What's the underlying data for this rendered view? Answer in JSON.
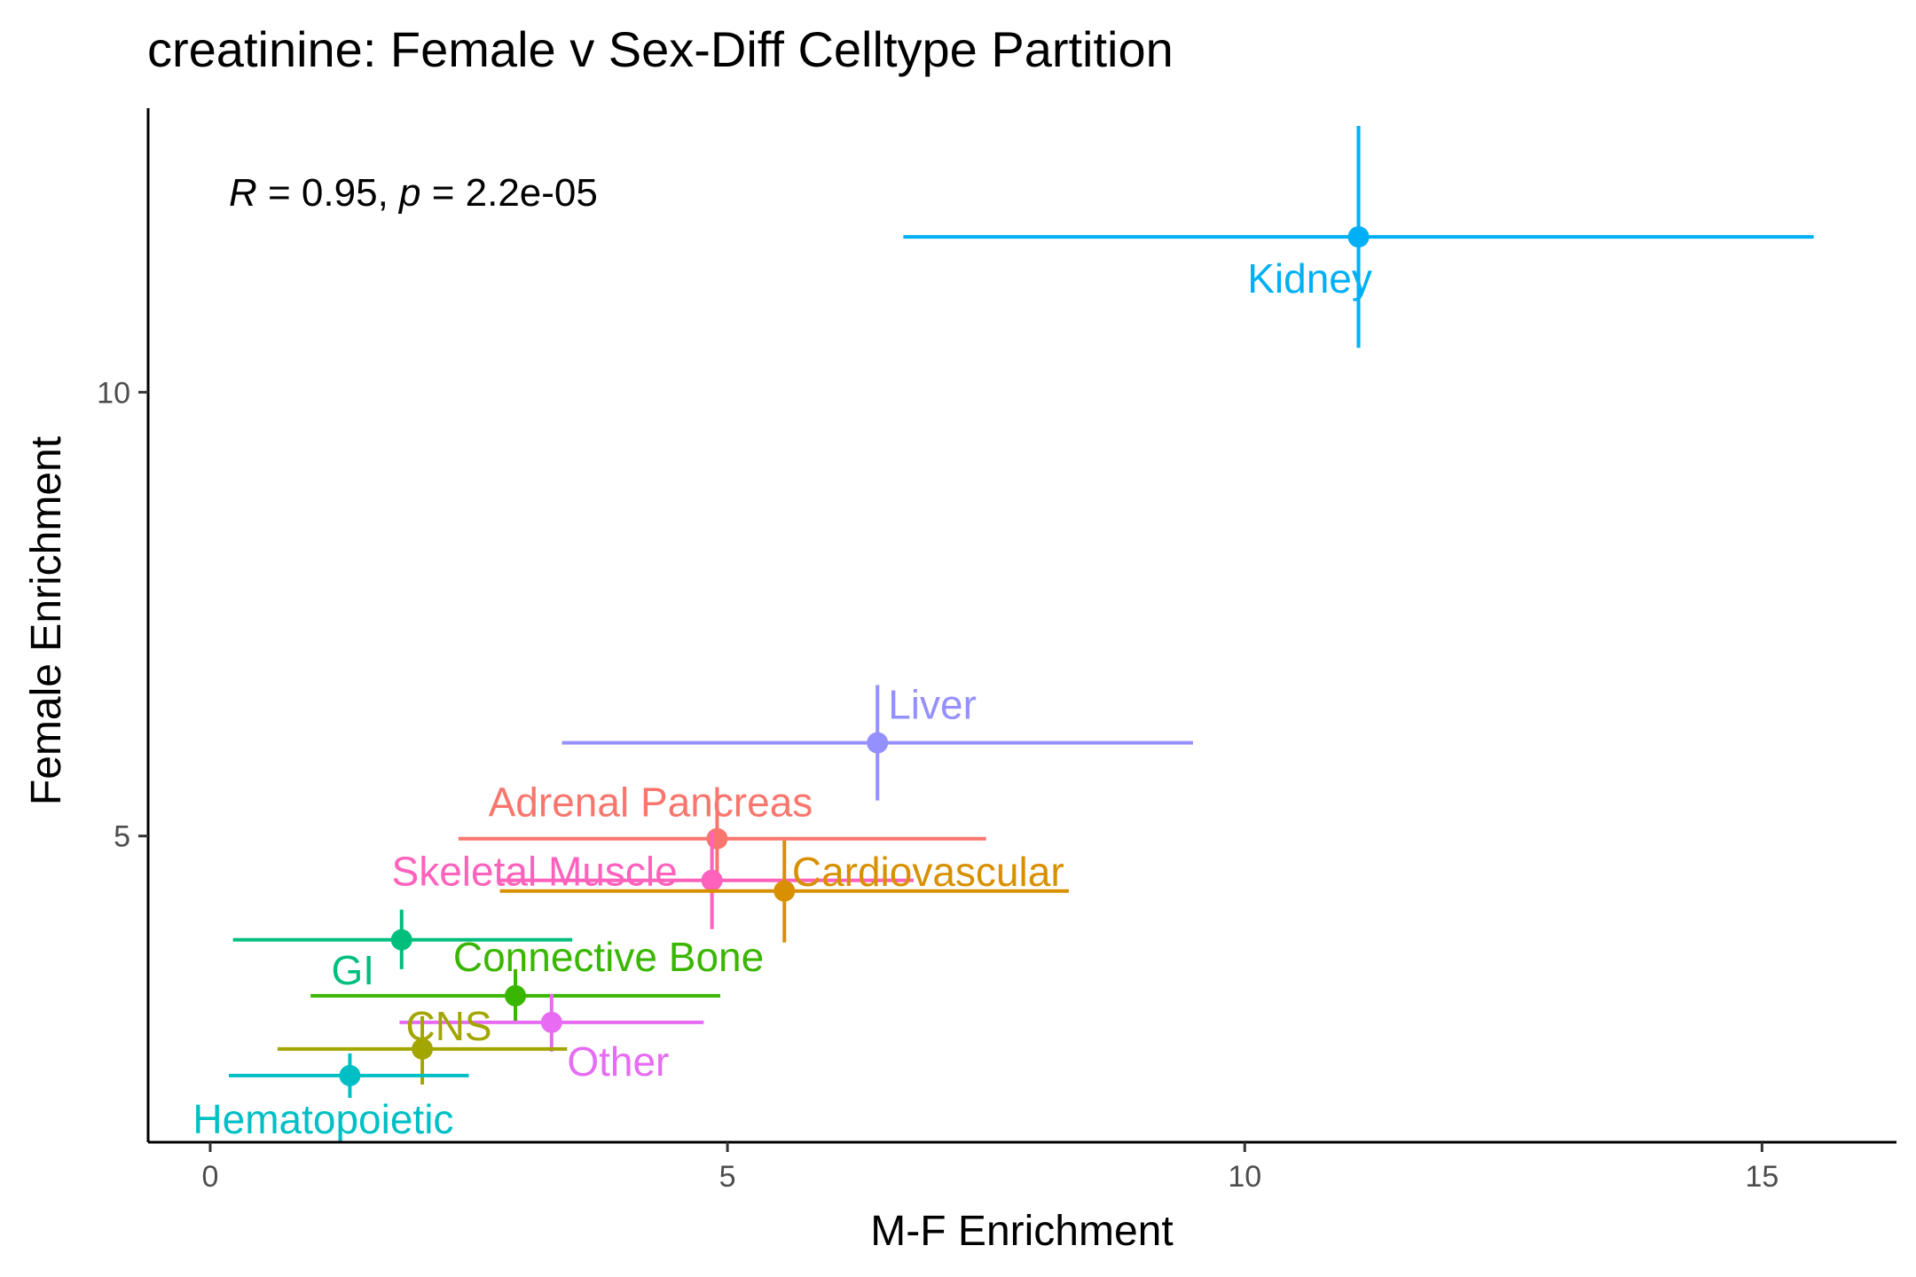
{
  "chart_data": {
    "type": "scatter",
    "title": "creatinine: Female v Sex-Diff Celltype Partition",
    "xlabel": "M-F Enrichment",
    "ylabel": "Female Enrichment",
    "xlim": [
      -0.6,
      16.3
    ],
    "ylim": [
      1.55,
      13.2
    ],
    "xticks": [
      0,
      5,
      10,
      15
    ],
    "yticks": [
      5,
      10
    ],
    "grid": false,
    "legend": "none",
    "annotation": {
      "r_symbol": "R",
      "r_text": " = 0.95, ",
      "p_symbol": "p",
      "p_text": " = 2.2e-05"
    },
    "points": [
      {
        "label": "Kidney",
        "x": 11.1,
        "y": 11.75,
        "xlo": 6.7,
        "xhi": 15.5,
        "ylo": 10.5,
        "yhi": 13.0,
        "color": "#00b0f6"
      },
      {
        "label": "Liver",
        "x": 6.45,
        "y": 6.05,
        "xlo": 3.4,
        "xhi": 9.5,
        "ylo": 5.4,
        "yhi": 6.7,
        "color": "#9590ff"
      },
      {
        "label": "Adrenal Pancreas",
        "x": 4.9,
        "y": 4.97,
        "xlo": 2.4,
        "xhi": 7.5,
        "ylo": 4.5,
        "yhi": 5.55,
        "color": "#f8766d"
      },
      {
        "label": "Skeletal Muscle",
        "x": 4.85,
        "y": 4.5,
        "xlo": 2.8,
        "xhi": 6.8,
        "ylo": 3.95,
        "yhi": 5.05,
        "color": "#ff62bc"
      },
      {
        "label": "Cardiovascular",
        "x": 5.55,
        "y": 4.38,
        "xlo": 2.8,
        "xhi": 8.3,
        "ylo": 3.8,
        "yhi": 4.95,
        "color": "#d89000"
      },
      {
        "label": "GI",
        "x": 1.85,
        "y": 3.83,
        "xlo": 0.22,
        "xhi": 3.5,
        "ylo": 3.5,
        "yhi": 4.17,
        "color": "#00bf7d"
      },
      {
        "label": "Connective Bone",
        "x": 2.95,
        "y": 3.2,
        "xlo": 0.97,
        "xhi": 4.93,
        "ylo": 2.9,
        "yhi": 3.5,
        "color": "#39b600"
      },
      {
        "label": "Other",
        "x": 3.3,
        "y": 2.9,
        "xlo": 1.83,
        "xhi": 4.77,
        "ylo": 2.57,
        "yhi": 3.22,
        "color": "#e76bf3"
      },
      {
        "label": "CNS",
        "x": 2.05,
        "y": 2.6,
        "xlo": 0.65,
        "xhi": 3.45,
        "ylo": 2.2,
        "yhi": 2.97,
        "color": "#a3a500"
      },
      {
        "label": "Hematopoietic",
        "x": 1.35,
        "y": 2.3,
        "xlo": 0.18,
        "xhi": 2.5,
        "ylo": 2.05,
        "yhi": 2.55,
        "color": "#00bfc4"
      }
    ]
  }
}
